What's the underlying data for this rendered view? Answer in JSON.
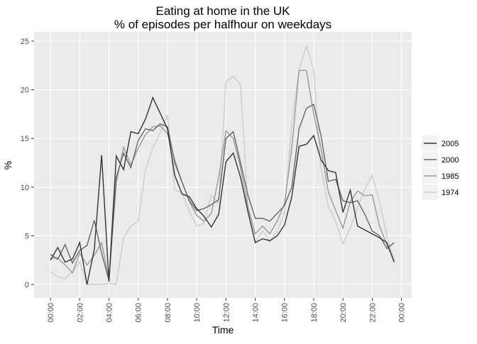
{
  "chart_data": {
    "type": "line",
    "title": "Eating at home in the UK",
    "subtitle": "% of episodes per halfhour on weekdays",
    "x_label": "Time",
    "y_label": "%",
    "x": [
      0,
      0.5,
      1,
      1.5,
      2,
      2.5,
      3,
      3.5,
      4,
      4.5,
      5,
      5.5,
      6,
      6.5,
      7,
      7.5,
      8,
      8.5,
      9,
      9.5,
      10,
      10.5,
      11,
      11.5,
      12,
      12.5,
      13,
      13.5,
      14,
      14.5,
      15,
      15.5,
      16,
      16.5,
      17,
      17.5,
      18,
      18.5,
      19,
      19.5,
      20,
      20.5,
      21,
      21.5,
      22,
      22.5,
      23,
      23.5
    ],
    "series": [
      {
        "name": "2005",
        "color": "#333333",
        "values": [
          2.5,
          3.8,
          2.3,
          2.6,
          4.3,
          0,
          3.6,
          13.3,
          0.3,
          13.2,
          11.8,
          15.7,
          15.5,
          17,
          19.2,
          17.6,
          16,
          11.2,
          9.3,
          9,
          7.8,
          7,
          5.9,
          7.2,
          12.6,
          13.5,
          11,
          7.5,
          4.3,
          4.7,
          4.5,
          5,
          6.1,
          9,
          14.2,
          14.4,
          15.3,
          12.8,
          11.7,
          11.5,
          7.4,
          9.7,
          6,
          5.6,
          5.2,
          4.8,
          4.3,
          2.3
        ]
      },
      {
        "name": "2000",
        "color": "#666666",
        "values": [
          3.1,
          2.6,
          4.1,
          2.2,
          3.5,
          4,
          6.6,
          3.2,
          0.4,
          11,
          13.5,
          12,
          14.8,
          16,
          15.8,
          16.5,
          16.2,
          12.5,
          10.5,
          8.6,
          7.6,
          7.8,
          8.2,
          8.7,
          15,
          15.7,
          12.5,
          9.2,
          6.8,
          6.8,
          6.5,
          7.3,
          8.1,
          10,
          16,
          18.1,
          18.5,
          15.3,
          10.6,
          10.8,
          8.6,
          8.4,
          8.6,
          7.2,
          5.5,
          5,
          3.7,
          4.3
        ]
      },
      {
        "name": "1985",
        "color": "#999999",
        "values": [
          2.7,
          2.7,
          2,
          1.2,
          3.2,
          2,
          3,
          4.3,
          0.5,
          10.5,
          14.1,
          12.3,
          14,
          15.4,
          16.2,
          16.3,
          15.5,
          12.8,
          10.5,
          8.5,
          7.1,
          6.5,
          7.3,
          11,
          15.8,
          15,
          12,
          8,
          5.2,
          6,
          5.2,
          6.5,
          8.3,
          14,
          22,
          22,
          17.5,
          14,
          9.5,
          7.6,
          5.8,
          8.5,
          9.6,
          9.1,
          9.2,
          6,
          4.1,
          2.4
        ]
      },
      {
        "name": "1974",
        "color": "#cccccc",
        "values": [
          1.3,
          0.8,
          0.6,
          1.3,
          2.3,
          0,
          0,
          0,
          0.1,
          0,
          4.8,
          6,
          6.5,
          11.8,
          14,
          15.6,
          17.4,
          9.7,
          9.4,
          7.5,
          6,
          6.3,
          9.2,
          8.3,
          20.8,
          21.4,
          20.5,
          8,
          4.4,
          5.5,
          4.4,
          5.5,
          7.3,
          16.6,
          22,
          24.5,
          22,
          12,
          8,
          6.5,
          4.2,
          5.8,
          7.9,
          9.8,
          11.2,
          8.5,
          5,
          2.5
        ]
      }
    ],
    "xlim": [
      -1.12,
      24.7
    ],
    "xticks": [
      {
        "value": 0,
        "label": "00:00"
      },
      {
        "value": 2,
        "label": "02:00"
      },
      {
        "value": 4,
        "label": "04:00"
      },
      {
        "value": 6,
        "label": "06:00"
      },
      {
        "value": 8,
        "label": "08:00"
      },
      {
        "value": 10,
        "label": "10:00"
      },
      {
        "value": 12,
        "label": "12:00"
      },
      {
        "value": 14,
        "label": "14:00"
      },
      {
        "value": 16,
        "label": "16:00"
      },
      {
        "value": 18,
        "label": "18:00"
      },
      {
        "value": 20,
        "label": "20:00"
      },
      {
        "value": 22,
        "label": "22:00"
      },
      {
        "value": 24,
        "label": "00:00"
      }
    ],
    "ylim": [
      -1.38,
      25.95
    ],
    "yticks": [
      0,
      5,
      10,
      15,
      20,
      25
    ],
    "grid": true,
    "legend": "right"
  }
}
